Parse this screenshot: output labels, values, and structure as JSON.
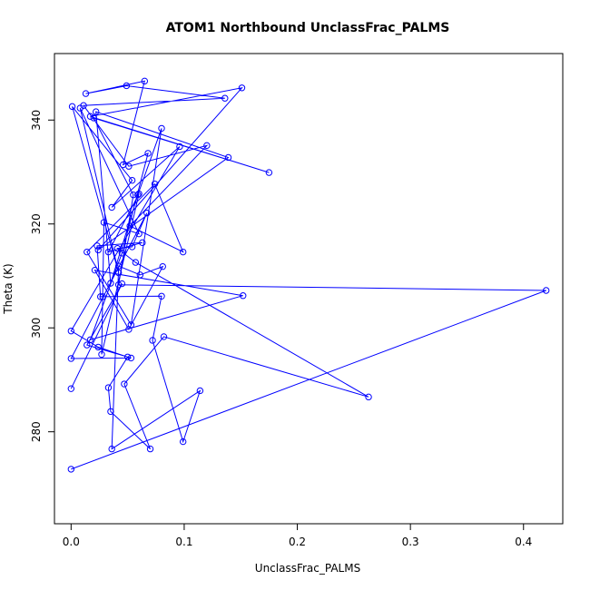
{
  "chart_data": {
    "type": "line",
    "title": "ATOM1 Northbound UnclassFrac_PALMS",
    "xlabel": "UnclassFrac_PALMS",
    "ylabel": "Theta (K)",
    "xlim": [
      -0.0147,
      0.4347
    ],
    "ylim": [
      262.3,
      352.8
    ],
    "x_ticks": [
      0.0,
      0.1,
      0.2,
      0.3,
      0.4
    ],
    "x_tick_labels": [
      "0.0",
      "0.1",
      "0.2",
      "0.3",
      "0.4"
    ],
    "y_ticks": [
      280,
      300,
      320,
      340
    ],
    "y_tick_labels": [
      "280",
      "300",
      "320",
      "340"
    ],
    "grid": false,
    "line_color": "#0000ff",
    "marker": "open-circle",
    "series": [
      {
        "x": [
          0.0,
          0.045,
          0.014,
          0.053,
          0.0,
          0.067,
          0.054,
          0.041,
          0.057,
          0.263,
          0.082,
          0.047,
          0.07,
          0.035,
          0.033,
          0.05,
          0.024,
          0.0,
          0.096,
          0.036,
          0.054,
          0.001,
          0.042,
          0.008,
          0.06,
          0.029,
          0.027,
          0.06,
          0.033,
          0.063,
          0.023,
          0.026,
          0.028,
          0.08,
          0.072,
          0.099,
          0.114,
          0.036,
          0.042,
          0.061,
          0.081,
          0.051,
          0.021,
          0.152,
          0.017,
          0.045,
          0.068,
          0.046,
          0.065,
          0.013,
          0.049,
          0.136,
          0.011,
          0.051,
          0.12,
          0.052,
          0.099,
          0.074,
          0.014,
          0.053,
          0.08,
          0.059,
          0.035,
          0.022,
          0.139,
          0.024,
          0.151,
          0.017,
          0.175,
          0.02,
          0.055,
          0.042,
          0.42,
          0.0
        ],
        "y": [
          288.3,
          308.5,
          296.7,
          294.2,
          294.1,
          322.1,
          315.6,
          315.3,
          312.6,
          286.7,
          298.3,
          289.2,
          276.7,
          283.9,
          288.5,
          294.4,
          296.3,
          299.4,
          334.9,
          323.2,
          328.4,
          342.6,
          310.6,
          342.3,
          318.1,
          320.3,
          294.9,
          325.8,
          314.6,
          316.4,
          315.8,
          306.0,
          306.0,
          306.1,
          297.6,
          278.1,
          287.9,
          276.7,
          311.9,
          310.2,
          311.8,
          299.7,
          311.1,
          306.2,
          297.7,
          314.4,
          333.6,
          331.4,
          347.5,
          345.1,
          346.6,
          344.2,
          342.8,
          331.1,
          335.1,
          319.6,
          314.6,
          327.7,
          314.6,
          300.6,
          338.4,
          325.6,
          308.6,
          341.6,
          332.8,
          315.0,
          346.2,
          340.7,
          329.9,
          340.4,
          325.6,
          308.3,
          307.2,
          272.8
        ]
      }
    ]
  }
}
